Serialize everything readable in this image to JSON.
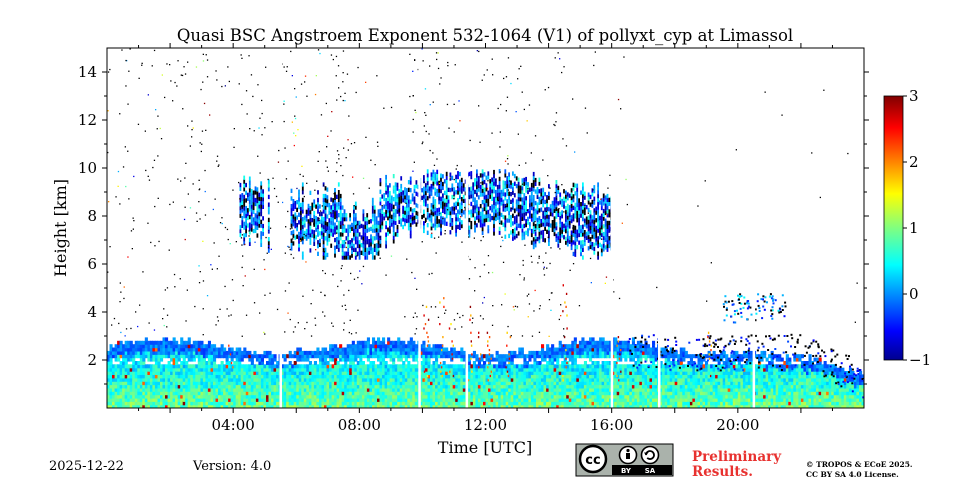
{
  "chart_data": {
    "type": "heatmap",
    "title": "Quasi BSC Angstroem Exponent 532-1064 (V1) of pollyxt_cyp at Limassol",
    "xlabel": "Time [UTC]",
    "ylabel": "Height [km]",
    "xlim": [
      0,
      24
    ],
    "ylim": [
      0,
      15
    ],
    "x_ticks": [
      {
        "value": 4,
        "label": "04:00"
      },
      {
        "value": 8,
        "label": "08:00"
      },
      {
        "value": 12,
        "label": "12:00"
      },
      {
        "value": 16,
        "label": "16:00"
      },
      {
        "value": 20,
        "label": "20:00"
      }
    ],
    "y_ticks": [
      {
        "value": 2,
        "label": "2"
      },
      {
        "value": 4,
        "label": "4"
      },
      {
        "value": 6,
        "label": "6"
      },
      {
        "value": 8,
        "label": "8"
      },
      {
        "value": 10,
        "label": "10"
      },
      {
        "value": 12,
        "label": "12"
      },
      {
        "value": 14,
        "label": "14"
      }
    ],
    "colorbar": {
      "range": [
        -1,
        3
      ],
      "ticks": [
        {
          "value": 3,
          "label": "3"
        },
        {
          "value": 2,
          "label": "2"
        },
        {
          "value": 1,
          "label": "1"
        },
        {
          "value": 0,
          "label": "0"
        },
        {
          "value": -1,
          "label": "−1"
        }
      ],
      "colormap": "jet"
    },
    "layers": [
      {
        "name": "boundary-layer",
        "t0": 0,
        "t1": 24,
        "z0": 0,
        "z1": 2.5,
        "value_range": [
          -0.3,
          1.3
        ]
      },
      {
        "name": "cirrus-cloud",
        "t0": 4.2,
        "t1": 16,
        "z0": 6.2,
        "z1": 9.8,
        "value_range": [
          -0.5,
          1.0
        ]
      },
      {
        "name": "elevated-patch",
        "t0": 19.5,
        "t1": 21.5,
        "z0": 3.6,
        "z1": 4.8,
        "value_range": [
          -0.5,
          0.6
        ]
      }
    ],
    "gaps": [
      5.5,
      9.9,
      11.4,
      16.0,
      17.5,
      20.5
    ]
  },
  "footer": {
    "date": "2025-12-22",
    "version": "Version: 4.0",
    "preliminary": [
      "Preliminary",
      "Results."
    ],
    "copyright": [
      "© TROPOS & ECoE 2025.",
      "CC BY SA 4.0 License."
    ],
    "license_badge": {
      "by": "BY",
      "sa": "SA",
      "icons": [
        "cc-icon",
        "person-icon",
        "share-alike-icon"
      ]
    }
  }
}
